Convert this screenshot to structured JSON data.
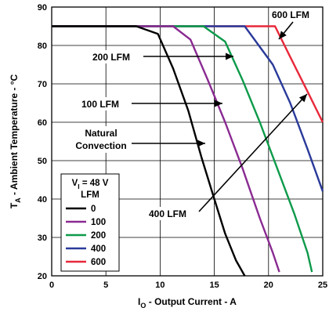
{
  "chart_data": {
    "type": "line",
    "title": "",
    "xlabel": {
      "main": "I",
      "sub": "O",
      "rest": " - Output Current  - A"
    },
    "ylabel": {
      "main": "T",
      "sub": "A",
      "rest": " - Ambient Temperature - °C"
    },
    "xlim": [
      0,
      25
    ],
    "ylim": [
      20,
      90
    ],
    "xticks": [
      0,
      5,
      10,
      15,
      20,
      25
    ],
    "yticks": [
      20,
      30,
      40,
      50,
      60,
      70,
      80,
      90
    ],
    "grid": true,
    "series": [
      {
        "name": "0",
        "color": "#000000",
        "x": [
          0,
          7.8,
          9.8,
          11.2,
          12.6,
          13.8,
          15.0,
          16.0,
          17.0,
          17.8
        ],
        "y": [
          85,
          85,
          83,
          74,
          63,
          51,
          40,
          31,
          24,
          20
        ]
      },
      {
        "name": "100",
        "color": "#8a2a92",
        "x": [
          0,
          11.2,
          12.8,
          14.4,
          16.0,
          17.6,
          19.2,
          20.4,
          21.0
        ],
        "y": [
          85,
          85,
          81.5,
          71,
          60,
          48,
          35,
          26,
          21
        ]
      },
      {
        "name": "200",
        "color": "#0d9a4a",
        "x": [
          0,
          14.0,
          16.0,
          17.6,
          19.2,
          20.8,
          22.4,
          23.6,
          24.0
        ],
        "y": [
          85,
          85,
          81,
          71,
          60,
          48,
          36,
          26,
          21
        ]
      },
      {
        "name": "400",
        "color": "#2a3a9a",
        "x": [
          0,
          17.8,
          20.4,
          22.0,
          23.6,
          25.0
        ],
        "y": [
          85,
          85,
          75,
          65,
          53,
          42
        ]
      },
      {
        "name": "600",
        "color": "#e8283a",
        "x": [
          0,
          20.6,
          22.0,
          23.6,
          25.0
        ],
        "y": [
          85,
          85,
          77,
          68,
          60
        ]
      }
    ],
    "legend": {
      "placement": "bottom-left",
      "title_line1": "V",
      "title_sub": "I",
      "title_rest": " = 48 V",
      "title_line2": "LFM"
    },
    "annotations": [
      {
        "id": "600",
        "label": "600 LFM"
      },
      {
        "id": "200",
        "label": "200 LFM"
      },
      {
        "id": "100",
        "label": "100 LFM"
      },
      {
        "id": "natural",
        "label_line1": "Natural",
        "label_line2": "Convection"
      },
      {
        "id": "400",
        "label": "400 LFM"
      }
    ]
  }
}
